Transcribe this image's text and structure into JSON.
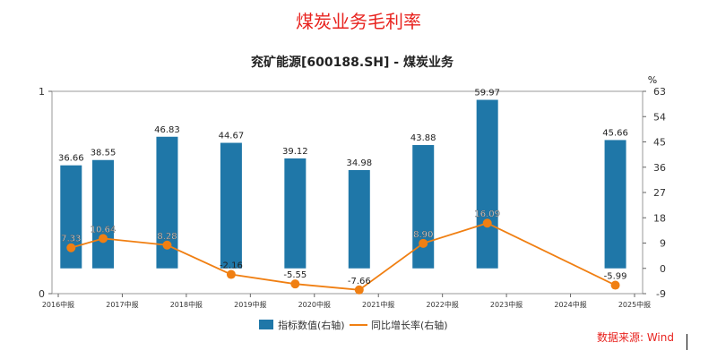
{
  "header": {
    "title": "煤炭业务毛利率"
  },
  "footer": {
    "source": "数据来源: Wind"
  },
  "colors": {
    "bar": "#1f77a8",
    "line": "#f07f12",
    "title": "#e8231f"
  },
  "chart_data": {
    "type": "bar",
    "title": "兖矿能源[600188.SH] - 煤炭业务",
    "right_axis_unit": "%",
    "categories": [
      "2016中报",
      "2017中报",
      "2018中报",
      "2019中报",
      "2020中报",
      "2021中报",
      "2022中报",
      "2023中报",
      "2024中报",
      "2025中报"
    ],
    "left_axis": {
      "ylim": [
        0,
        1
      ],
      "ticks": [
        "0",
        "1"
      ]
    },
    "right_axis": {
      "ylim": [
        -9,
        63
      ],
      "ticks": [
        -9,
        0,
        9,
        18,
        27,
        36,
        45,
        54,
        63
      ]
    },
    "series": [
      {
        "name": "指标数值(右轴)",
        "type": "bar",
        "points": [
          {
            "x": 2016.2,
            "value": 36.66
          },
          {
            "x": 2016.7,
            "value": 38.55
          },
          {
            "x": 2017.7,
            "value": 46.83
          },
          {
            "x": 2018.7,
            "value": 44.67
          },
          {
            "x": 2019.7,
            "value": 39.12
          },
          {
            "x": 2020.7,
            "value": 34.98
          },
          {
            "x": 2021.7,
            "value": 43.88
          },
          {
            "x": 2022.7,
            "value": 59.97
          },
          {
            "x": 2024.7,
            "value": 45.66
          }
        ]
      },
      {
        "name": "同比增长率(右轴)",
        "type": "line",
        "points": [
          {
            "x": 2016.2,
            "value": 7.33
          },
          {
            "x": 2016.7,
            "value": 10.64
          },
          {
            "x": 2017.7,
            "value": 8.28
          },
          {
            "x": 2018.7,
            "value": -2.16
          },
          {
            "x": 2019.7,
            "value": -5.55
          },
          {
            "x": 2020.7,
            "value": -7.66
          },
          {
            "x": 2021.7,
            "value": 8.9
          },
          {
            "x": 2022.7,
            "value": 16.09
          },
          {
            "x": 2024.7,
            "value": -5.99
          }
        ]
      }
    ],
    "legend_position": "bottom-center",
    "grid": false
  }
}
